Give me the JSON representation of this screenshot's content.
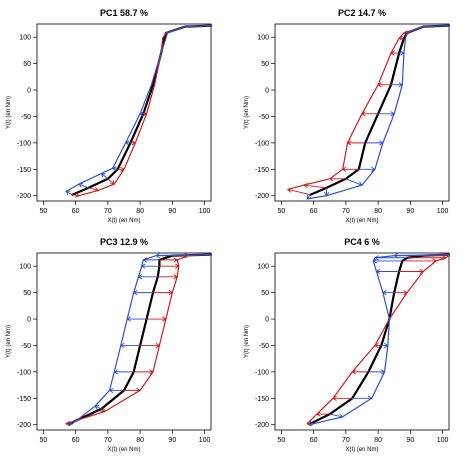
{
  "colors": {
    "mean": "#000000",
    "plus": "#d11a1a",
    "minus": "#2a4fd6"
  },
  "chart_data": [
    {
      "type": "line",
      "title": "PC1  58.7 %",
      "xlabel": "X(t) (en Nm)",
      "ylabel": "Y(t) (en Nm)",
      "xlim": [
        48,
        102
      ],
      "ylim": [
        -210,
        125
      ],
      "xticks": [
        "50",
        "60",
        "70",
        "80",
        "90",
        "100"
      ],
      "yticks": [
        "-200",
        "-150",
        "-100",
        "-50",
        "0",
        "50",
        "100"
      ],
      "series": [
        {
          "role": "mean",
          "x": [
            59,
            64,
            70,
            73,
            77,
            81,
            84,
            86.5,
            87.5,
            88,
            94,
            102
          ],
          "y": [
            -198,
            -185,
            -168,
            -150,
            -100,
            -45,
            10,
            70,
            98,
            108,
            120,
            122
          ]
        },
        {
          "role": "plus",
          "x": [
            61,
            67,
            72,
            75,
            78.5,
            82,
            84.5,
            86.5,
            87,
            88,
            94,
            102
          ],
          "y": [
            -200,
            -190,
            -178,
            -150,
            -100,
            -45,
            10,
            70,
            98,
            108,
            120,
            122
          ]
        },
        {
          "role": "minus",
          "x": [
            57,
            61,
            68,
            71.5,
            75.5,
            80,
            83.5,
            86.5,
            88,
            88.5,
            94,
            102
          ],
          "y": [
            -192,
            -178,
            -158,
            -148,
            -100,
            -45,
            10,
            70,
            98,
            108,
            120,
            122
          ]
        }
      ]
    },
    {
      "type": "line",
      "title": "PC2  14.7 %",
      "xlabel": "X(t) (en Nm)",
      "ylabel": "Y(t) (en Nm)",
      "xlim": [
        48,
        102
      ],
      "ylim": [
        -210,
        125
      ],
      "xticks": [
        "50",
        "60",
        "70",
        "80",
        "90",
        "100"
      ],
      "yticks": [
        "-200",
        "-150",
        "-100",
        "-50",
        "0",
        "50",
        "100"
      ],
      "series": [
        {
          "role": "mean",
          "x": [
            59,
            64,
            70,
            74,
            76,
            80,
            84,
            86.5,
            88,
            89,
            94,
            102
          ],
          "y": [
            -198,
            -185,
            -168,
            -150,
            -100,
            -45,
            10,
            70,
            98,
            108,
            120,
            122
          ]
        },
        {
          "role": "plus",
          "x": [
            52,
            57,
            65,
            69,
            70.5,
            75,
            80,
            84,
            86.5,
            88,
            94,
            102
          ],
          "y": [
            -188,
            -180,
            -168,
            -150,
            -100,
            -45,
            10,
            70,
            98,
            108,
            120,
            122
          ]
        },
        {
          "role": "minus",
          "x": [
            58,
            64,
            75,
            79,
            81.5,
            85,
            87.5,
            88,
            88.5,
            89,
            94,
            102
          ],
          "y": [
            -206,
            -200,
            -180,
            -150,
            -100,
            -45,
            10,
            70,
            98,
            108,
            120,
            122
          ]
        }
      ]
    },
    {
      "type": "line",
      "title": "PC3  12.9 %",
      "xlabel": "X(t) (en Nm)",
      "ylabel": "Y(t) (en Nm)",
      "xlim": [
        48,
        102
      ],
      "ylim": [
        -210,
        125
      ],
      "xticks": [
        "50",
        "60",
        "70",
        "80",
        "90",
        "100"
      ],
      "yticks": [
        "-200",
        "-150",
        "-100",
        "-50",
        "0",
        "50",
        "100"
      ],
      "series": [
        {
          "role": "mean",
          "x": [
            58,
            68,
            75,
            78,
            80,
            82,
            84,
            85.5,
            86,
            86,
            90,
            102
          ],
          "y": [
            -198,
            -170,
            -135,
            -100,
            -50,
            0,
            50,
            80,
            100,
            112,
            120,
            122
          ]
        },
        {
          "role": "plus",
          "x": [
            57,
            69,
            80,
            84,
            86,
            88,
            90,
            91.5,
            92,
            91.5,
            95,
            102
          ],
          "y": [
            -198,
            -175,
            -135,
            -100,
            -50,
            0,
            50,
            80,
            100,
            112,
            120,
            122
          ]
        },
        {
          "role": "minus",
          "x": [
            59,
            66,
            70.5,
            72,
            74,
            76,
            78,
            79.5,
            80.5,
            81,
            85,
            102
          ],
          "y": [
            -198,
            -165,
            -135,
            -100,
            -50,
            0,
            50,
            80,
            100,
            112,
            120,
            122
          ]
        }
      ]
    },
    {
      "type": "line",
      "title": "PC4  6 %",
      "xlabel": "X(t) (en Nm)",
      "ylabel": "Y(t) (en Nm)",
      "xlim": [
        48,
        102
      ],
      "ylim": [
        -210,
        125
      ],
      "xticks": [
        "50",
        "60",
        "70",
        "80",
        "90",
        "100"
      ],
      "yticks": [
        "-200",
        "-150",
        "-100",
        "-50",
        "0",
        "50",
        "100"
      ],
      "series": [
        {
          "role": "mean",
          "x": [
            59,
            65,
            72,
            77,
            81,
            83.5,
            85,
            86.5,
            87.5,
            89,
            94,
            102
          ],
          "y": [
            -198,
            -180,
            -150,
            -100,
            -50,
            0,
            50,
            90,
            110,
            116,
            120,
            122
          ]
        },
        {
          "role": "plus",
          "x": [
            58,
            61,
            66,
            72,
            79,
            83.5,
            89,
            94,
            98,
            101,
            102,
            102
          ],
          "y": [
            -198,
            -180,
            -150,
            -100,
            -50,
            0,
            50,
            90,
            110,
            116,
            120,
            122
          ]
        },
        {
          "role": "minus",
          "x": [
            60,
            69,
            78,
            82,
            83,
            83.5,
            81.5,
            79.5,
            78.5,
            79,
            85,
            102
          ],
          "y": [
            -198,
            -185,
            -150,
            -100,
            -50,
            0,
            50,
            90,
            110,
            116,
            120,
            122
          ]
        }
      ]
    }
  ]
}
